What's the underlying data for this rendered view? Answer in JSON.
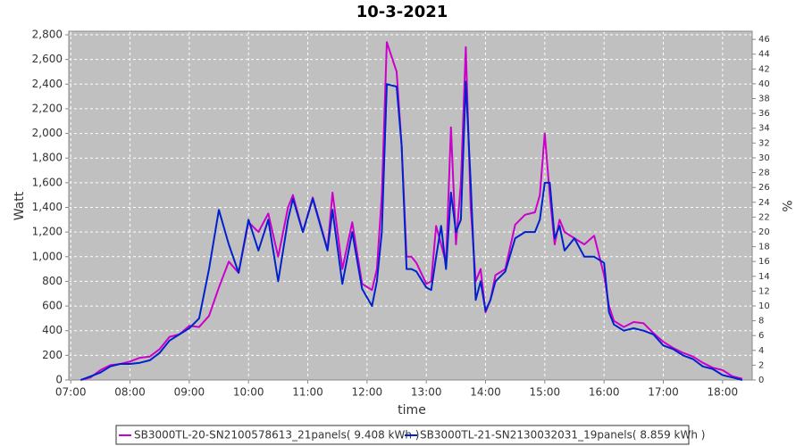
{
  "chart_data": {
    "type": "line",
    "title": "10-3-2021",
    "xlabel": "time",
    "ylabel": "Watt",
    "y2label": "%",
    "x": [
      "07:10",
      "07:20",
      "07:30",
      "07:40",
      "07:50",
      "08:00",
      "08:10",
      "08:20",
      "08:30",
      "08:40",
      "08:50",
      "09:00",
      "09:10",
      "09:20",
      "09:30",
      "09:40",
      "09:50",
      "10:00",
      "10:10",
      "10:20",
      "10:30",
      "10:40",
      "10:45",
      "10:55",
      "11:05",
      "11:20",
      "11:25",
      "11:35",
      "11:45",
      "11:55",
      "12:05",
      "12:10",
      "12:15",
      "12:20",
      "12:30",
      "12:35",
      "12:40",
      "12:45",
      "12:50",
      "13:00",
      "13:05",
      "13:10",
      "13:15",
      "13:20",
      "13:25",
      "13:30",
      "13:35",
      "13:40",
      "13:45",
      "13:50",
      "13:55",
      "14:00",
      "14:05",
      "14:10",
      "14:20",
      "14:30",
      "14:40",
      "14:50",
      "14:55",
      "15:00",
      "15:05",
      "15:10",
      "15:15",
      "15:20",
      "15:30",
      "15:40",
      "15:50",
      "16:00",
      "16:05",
      "16:10",
      "16:20",
      "16:30",
      "16:40",
      "16:50",
      "17:00",
      "17:10",
      "17:20",
      "17:30",
      "17:40",
      "17:50",
      "18:00",
      "18:10",
      "18:20"
    ],
    "series": [
      {
        "name": "SB3000TL-20-SN2100578613_21panels( 9.408 kWh )",
        "color": "#cc00cc",
        "values": [
          0,
          20,
          80,
          120,
          130,
          150,
          180,
          190,
          250,
          350,
          370,
          440,
          430,
          520,
          750,
          960,
          870,
          1280,
          1200,
          1350,
          1000,
          1400,
          1500,
          1200,
          1480,
          1060,
          1520,
          900,
          1280,
          780,
          730,
          900,
          1500,
          2740,
          2500,
          1900,
          1000,
          1000,
          950,
          780,
          800,
          1250,
          1100,
          950,
          2050,
          1100,
          1600,
          2700,
          1400,
          800,
          900,
          550,
          650,
          850,
          900,
          1260,
          1340,
          1360,
          1500,
          2000,
          1500,
          1100,
          1300,
          1200,
          1150,
          1100,
          1170,
          850,
          600,
          480,
          430,
          470,
          460,
          380,
          310,
          260,
          220,
          190,
          140,
          100,
          80,
          30,
          10
        ]
      },
      {
        "name": "SB3000TL-21-SN2130032031_19panels( 8.859 kWh )",
        "color": "#0022cc",
        "values": [
          0,
          30,
          60,
          110,
          130,
          130,
          140,
          160,
          220,
          320,
          370,
          420,
          500,
          900,
          1380,
          1100,
          870,
          1300,
          1050,
          1300,
          800,
          1300,
          1470,
          1200,
          1470,
          1050,
          1380,
          780,
          1200,
          740,
          600,
          800,
          1200,
          2400,
          2380,
          1900,
          900,
          900,
          880,
          750,
          730,
          1000,
          1250,
          900,
          1520,
          1200,
          1300,
          2420,
          1600,
          650,
          800,
          560,
          650,
          800,
          880,
          1150,
          1200,
          1200,
          1300,
          1600,
          1600,
          1150,
          1250,
          1050,
          1150,
          1000,
          1000,
          950,
          550,
          450,
          400,
          420,
          400,
          370,
          280,
          250,
          200,
          170,
          110,
          90,
          40,
          20,
          0
        ]
      }
    ],
    "xlim": [
      "06:58",
      "18:30"
    ],
    "xticks": [
      "07:00",
      "08:00",
      "09:00",
      "10:00",
      "11:00",
      "12:00",
      "13:00",
      "14:00",
      "15:00",
      "16:00",
      "17:00",
      "18:00"
    ],
    "ylim": [
      0,
      2829
    ],
    "yticks": [
      0,
      200,
      400,
      600,
      800,
      {
        "value": 1000,
        "label": "1,000"
      },
      {
        "value": 1200,
        "label": "1,200"
      },
      {
        "value": 1400,
        "label": "1,400"
      },
      {
        "value": 1600,
        "label": "1,600"
      },
      {
        "value": 1800,
        "label": "1,800"
      },
      {
        "value": 2000,
        "label": "2,000"
      },
      {
        "value": 2200,
        "label": "2,200"
      },
      {
        "value": 2400,
        "label": "2,400"
      },
      {
        "value": 2600,
        "label": "2,600"
      },
      {
        "value": 2800,
        "label": "2,800"
      }
    ],
    "y2lim": [
      0,
      47.1
    ],
    "y2ticks": [
      0,
      2,
      4,
      6,
      8,
      10,
      12,
      14,
      16,
      18,
      20,
      22,
      24,
      26,
      28,
      30,
      32,
      34,
      36,
      38,
      40,
      42,
      44,
      46
    ],
    "grid": true,
    "legend": "bottom"
  }
}
